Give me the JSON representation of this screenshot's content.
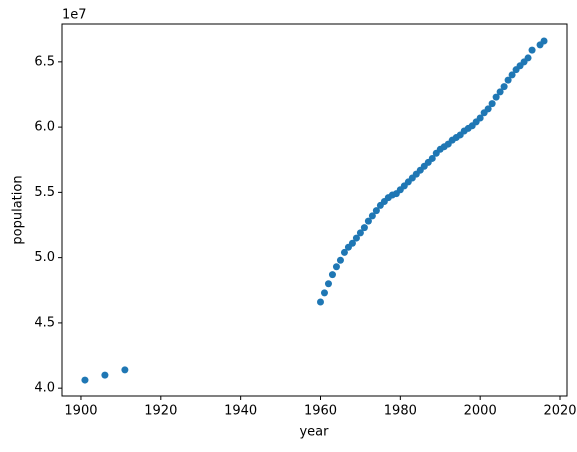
{
  "chart_data": {
    "type": "scatter",
    "x_label": "year",
    "y_label": "population",
    "y_offset_label": "1e7",
    "color": "#1f77b4",
    "x": [
      1901,
      1906,
      1911,
      1960,
      1961,
      1962,
      1963,
      1964,
      1965,
      1966,
      1967,
      1968,
      1969,
      1970,
      1971,
      1972,
      1973,
      1974,
      1975,
      1976,
      1977,
      1978,
      1979,
      1980,
      1981,
      1982,
      1983,
      1984,
      1985,
      1986,
      1987,
      1988,
      1989,
      1990,
      1991,
      1992,
      1993,
      1994,
      1995,
      1996,
      1997,
      1998,
      1999,
      2000,
      2001,
      2002,
      2003,
      2004,
      2005,
      2006,
      2007,
      2008,
      2009,
      2010,
      2011,
      2012,
      2013,
      2015,
      2016
    ],
    "values": [
      40620000,
      41000000,
      41400000,
      46600000,
      47300000,
      48000000,
      48700000,
      49300000,
      49800000,
      50400000,
      50800000,
      51100000,
      51500000,
      51900000,
      52300000,
      52800000,
      53200000,
      53600000,
      54000000,
      54300000,
      54600000,
      54800000,
      54900000,
      55200000,
      55500000,
      55800000,
      56100000,
      56400000,
      56700000,
      57000000,
      57300000,
      57600000,
      58000000,
      58300000,
      58500000,
      58700000,
      59000000,
      59200000,
      59400000,
      59700000,
      59900000,
      60100000,
      60400000,
      60700000,
      61100000,
      61400000,
      61800000,
      62300000,
      62700000,
      63100000,
      63600000,
      64000000,
      64400000,
      64700000,
      65000000,
      65300000,
      65900000,
      66300000,
      66600000
    ],
    "xlim": [
      1895.25,
      2021.75
    ],
    "xticks": [
      1900,
      1920,
      1940,
      1960,
      1980,
      2000,
      2020
    ],
    "ylim": [
      39400000,
      67900000
    ],
    "yticks": [
      {
        "value": 40000000,
        "label": "4.0"
      },
      {
        "value": 45000000,
        "label": "4.5"
      },
      {
        "value": 50000000,
        "label": "5.0"
      },
      {
        "value": 55000000,
        "label": "5.5"
      },
      {
        "value": 60000000,
        "label": "6.0"
      },
      {
        "value": 65000000,
        "label": "6.5"
      }
    ]
  }
}
